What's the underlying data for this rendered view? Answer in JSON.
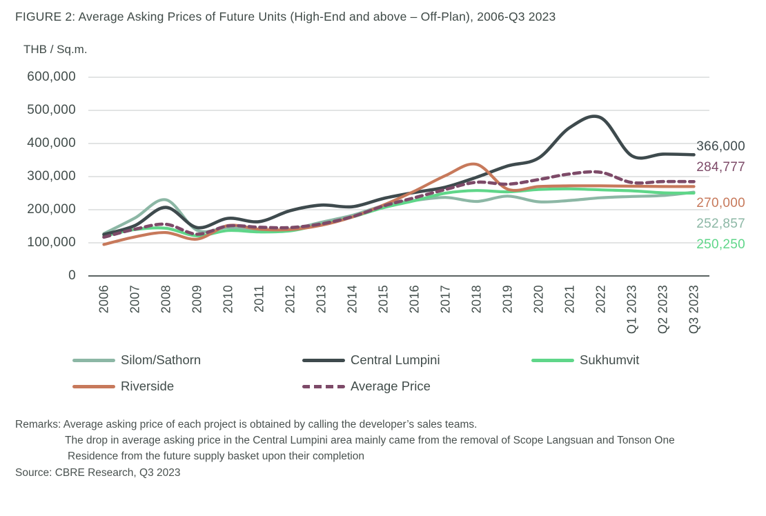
{
  "figure": {
    "title": "FIGURE 2: Average Asking Prices of Future Units (High-End and above – Off-Plan), 2006-Q3 2023",
    "unit_label": "THB / Sq.m."
  },
  "remarks": {
    "line1": "Remarks: Average asking price of each project is obtained by calling the developer’s sales teams.",
    "line2": "The drop in average asking price in the Central Lumpini area mainly came from the removal of Scope Langsuan and Tonson One",
    "line3": "Residence from the future supply basket upon their completion",
    "source": "Source: CBRE Research, Q3 2023"
  },
  "chart_data": {
    "type": "line",
    "title": "Average Asking Prices of Future Units (High-End and above – Off-Plan), 2006-Q3 2023",
    "xlabel": "",
    "ylabel": "THB / Sq.m.",
    "ylim": [
      0,
      600000
    ],
    "ytick_step": 100000,
    "ytick_labels": [
      "0",
      "100,000",
      "200,000",
      "300,000",
      "400,000",
      "500,000",
      "600,000"
    ],
    "grid": true,
    "legend_position": "bottom",
    "categories": [
      "2006",
      "2007",
      "2008",
      "2009",
      "2010",
      "2011",
      "2012",
      "2013",
      "2014",
      "2015",
      "2016",
      "2017",
      "2018",
      "2019",
      "2020",
      "2021",
      "2022",
      "Q1 2023",
      "Q2 2023",
      "Q3 2023"
    ],
    "series": [
      {
        "name": "Silom/Sathorn",
        "color": "#8cb7a5",
        "style": "solid",
        "end_label": "252,857",
        "end_value": 252857,
        "values": [
          128000,
          175000,
          230000,
          138000,
          146000,
          136000,
          141000,
          162000,
          183000,
          212000,
          228000,
          237000,
          225000,
          241000,
          224000,
          228000,
          236000,
          240000,
          243000,
          252857
        ]
      },
      {
        "name": "Central Lumpini",
        "color": "#3e4a4d",
        "style": "solid",
        "end_label": "366,000",
        "end_value": 366000,
        "values": [
          125000,
          152000,
          207000,
          146000,
          174000,
          164000,
          197000,
          214000,
          209000,
          234000,
          252000,
          268000,
          298000,
          332000,
          356000,
          448000,
          478000,
          363000,
          368000,
          366000
        ]
      },
      {
        "name": "Sukhumvit",
        "color": "#5fd689",
        "style": "solid",
        "end_label": "250,250",
        "end_value": 250250,
        "values": [
          120000,
          140000,
          144000,
          121000,
          137000,
          133000,
          136000,
          156000,
          178000,
          206000,
          227000,
          250000,
          258000,
          254000,
          261000,
          263000,
          260000,
          257000,
          251000,
          250250
        ]
      },
      {
        "name": "Riverside",
        "color": "#c7795b",
        "style": "solid",
        "end_label": "270,000",
        "end_value": 270000,
        "values": [
          95000,
          118000,
          131000,
          111000,
          152000,
          141000,
          140000,
          153000,
          178000,
          214000,
          256000,
          303000,
          337000,
          262000,
          270000,
          272000,
          272000,
          271000,
          270000,
          270000
        ]
      },
      {
        "name": "Average Price",
        "color": "#7d4a68",
        "style": "dashed",
        "end_label": "284,777",
        "end_value": 284777,
        "values": [
          117000,
          141000,
          156000,
          126000,
          151000,
          147000,
          146000,
          157000,
          179000,
          211000,
          236000,
          261000,
          283000,
          277000,
          291000,
          308000,
          313000,
          282000,
          285000,
          284777
        ]
      }
    ]
  }
}
